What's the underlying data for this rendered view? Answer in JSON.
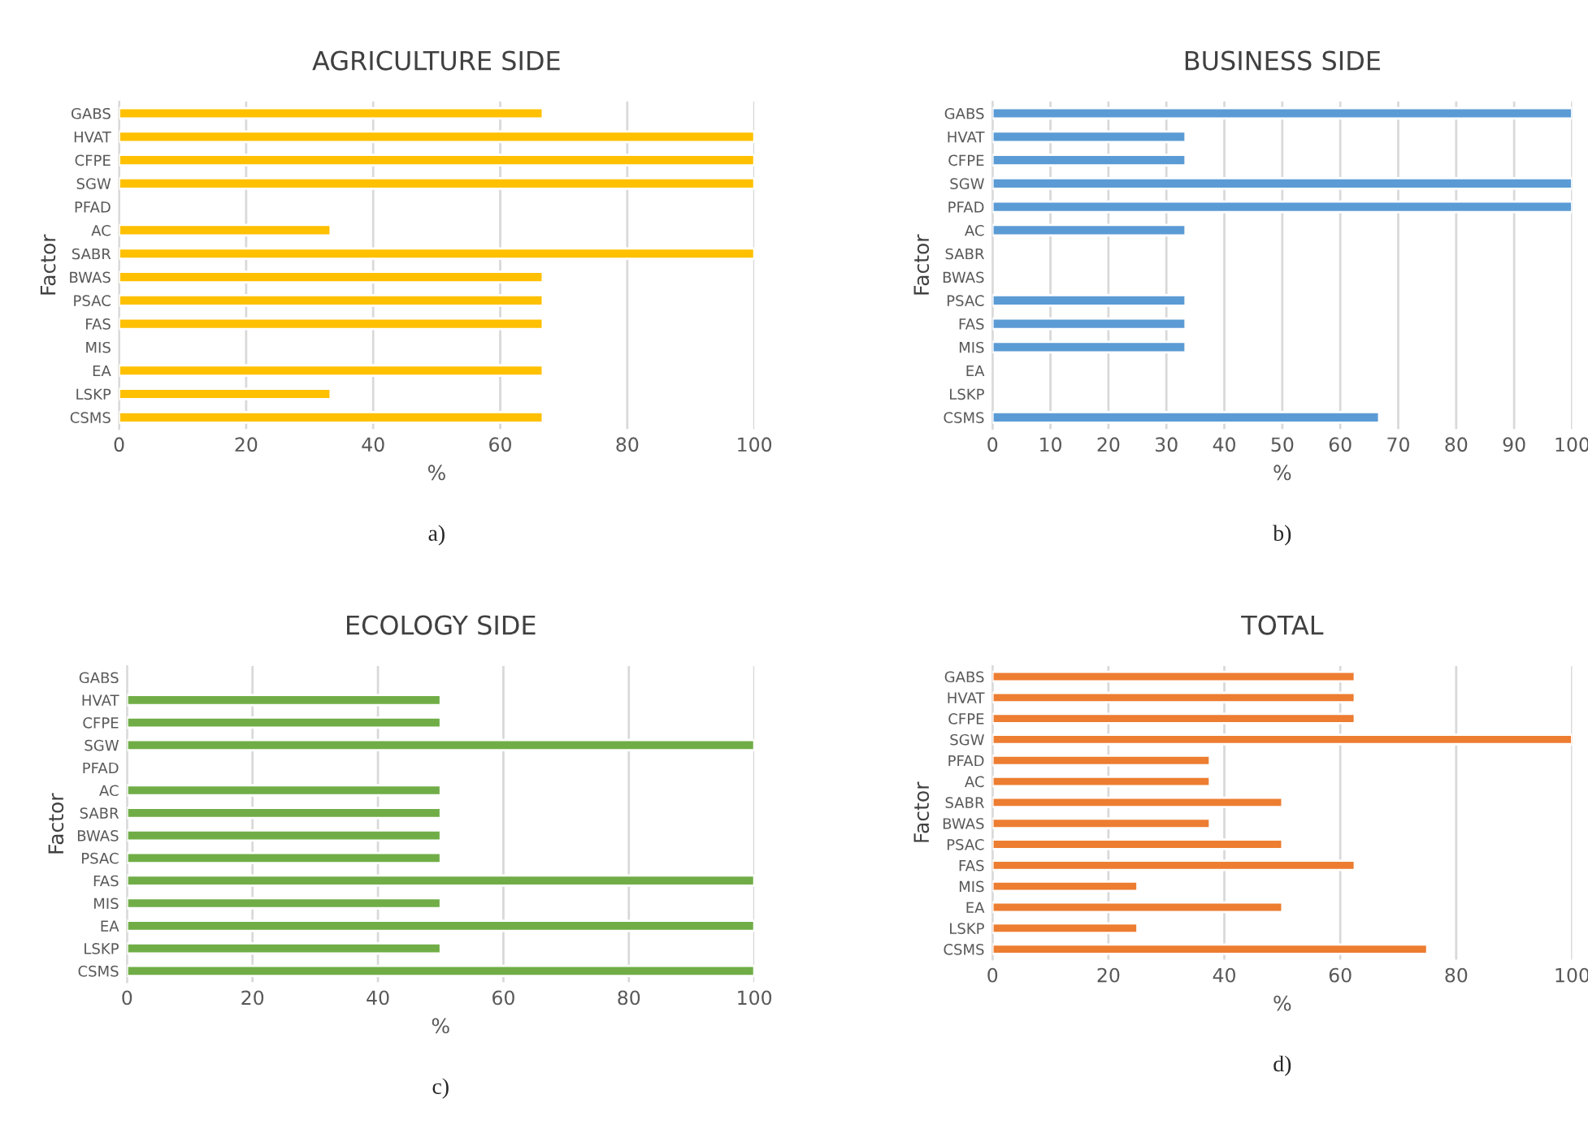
{
  "chart_data": [
    {
      "type": "bar",
      "orientation": "horizontal",
      "title": "AGRICULTURE SIDE",
      "xlabel": "%",
      "ylabel": "Factor",
      "categories": [
        "GABS",
        "HVAT",
        "CFPE",
        "SGW",
        "PFAD",
        "AC",
        "SABR",
        "BWAS",
        "PSAC",
        "FAS",
        "MIS",
        "EA",
        "LSKP",
        "CSMS"
      ],
      "series": [
        {
          "color": "#ffc000",
          "values": [
            66.7,
            100,
            100,
            100,
            null,
            33.3,
            100,
            66.7,
            66.7,
            66.7,
            null,
            66.7,
            33.3,
            66.7
          ]
        }
      ],
      "xlim": [
        0,
        100
      ],
      "xticks": [
        0,
        20,
        40,
        60,
        80,
        100
      ],
      "grid": "x",
      "legend": false,
      "annotations": [
        "a)"
      ]
    },
    {
      "type": "bar",
      "orientation": "horizontal",
      "title": "BUSINESS SIDE",
      "xlabel": "%",
      "ylabel": "Factor",
      "categories": [
        "GABS",
        "HVAT",
        "CFPE",
        "SGW",
        "PFAD",
        "AC",
        "SABR",
        "BWAS",
        "PSAC",
        "FAS",
        "MIS",
        "EA",
        "LSKP",
        "CSMS"
      ],
      "series": [
        {
          "color": "#5b9bd5",
          "values": [
            100,
            33.3,
            33.3,
            100,
            100,
            33.3,
            null,
            null,
            33.3,
            33.3,
            33.3,
            null,
            null,
            66.7
          ]
        }
      ],
      "xlim": [
        0,
        100
      ],
      "xticks": [
        0,
        10,
        20,
        30,
        40,
        50,
        60,
        70,
        80,
        90,
        100
      ],
      "grid": "x",
      "legend": false,
      "annotations": [
        "b)"
      ]
    },
    {
      "type": "bar",
      "orientation": "horizontal",
      "title": "ECOLOGY SIDE",
      "xlabel": "%",
      "ylabel": "Factor",
      "categories": [
        "GABS",
        "HVAT",
        "CFPE",
        "SGW",
        "PFAD",
        "AC",
        "SABR",
        "BWAS",
        "PSAC",
        "FAS",
        "MIS",
        "EA",
        "LSKP",
        "CSMS"
      ],
      "series": [
        {
          "color": "#70ad47",
          "values": [
            null,
            50,
            50,
            100,
            null,
            50,
            50,
            50,
            50,
            100,
            50,
            100,
            50,
            100
          ]
        }
      ],
      "xlim": [
        0,
        100
      ],
      "xticks": [
        0,
        20,
        40,
        60,
        80,
        100
      ],
      "grid": "x",
      "legend": false,
      "annotations": [
        "c)"
      ]
    },
    {
      "type": "bar",
      "orientation": "horizontal",
      "title": "TOTAL",
      "xlabel": "%",
      "ylabel": "Factor",
      "categories": [
        "GABS",
        "HVAT",
        "CFPE",
        "SGW",
        "PFAD",
        "AC",
        "SABR",
        "BWAS",
        "PSAC",
        "FAS",
        "MIS",
        "EA",
        "LSKP",
        "CSMS"
      ],
      "series": [
        {
          "color": "#ed7d31",
          "values": [
            62.5,
            62.5,
            62.5,
            100,
            37.5,
            37.5,
            50,
            37.5,
            50,
            62.5,
            25,
            50,
            25,
            75
          ]
        }
      ],
      "xlim": [
        0,
        100
      ],
      "xticks": [
        0,
        20,
        40,
        60,
        80,
        100
      ],
      "grid": "x",
      "legend": false,
      "annotations": [
        "d)"
      ]
    }
  ]
}
